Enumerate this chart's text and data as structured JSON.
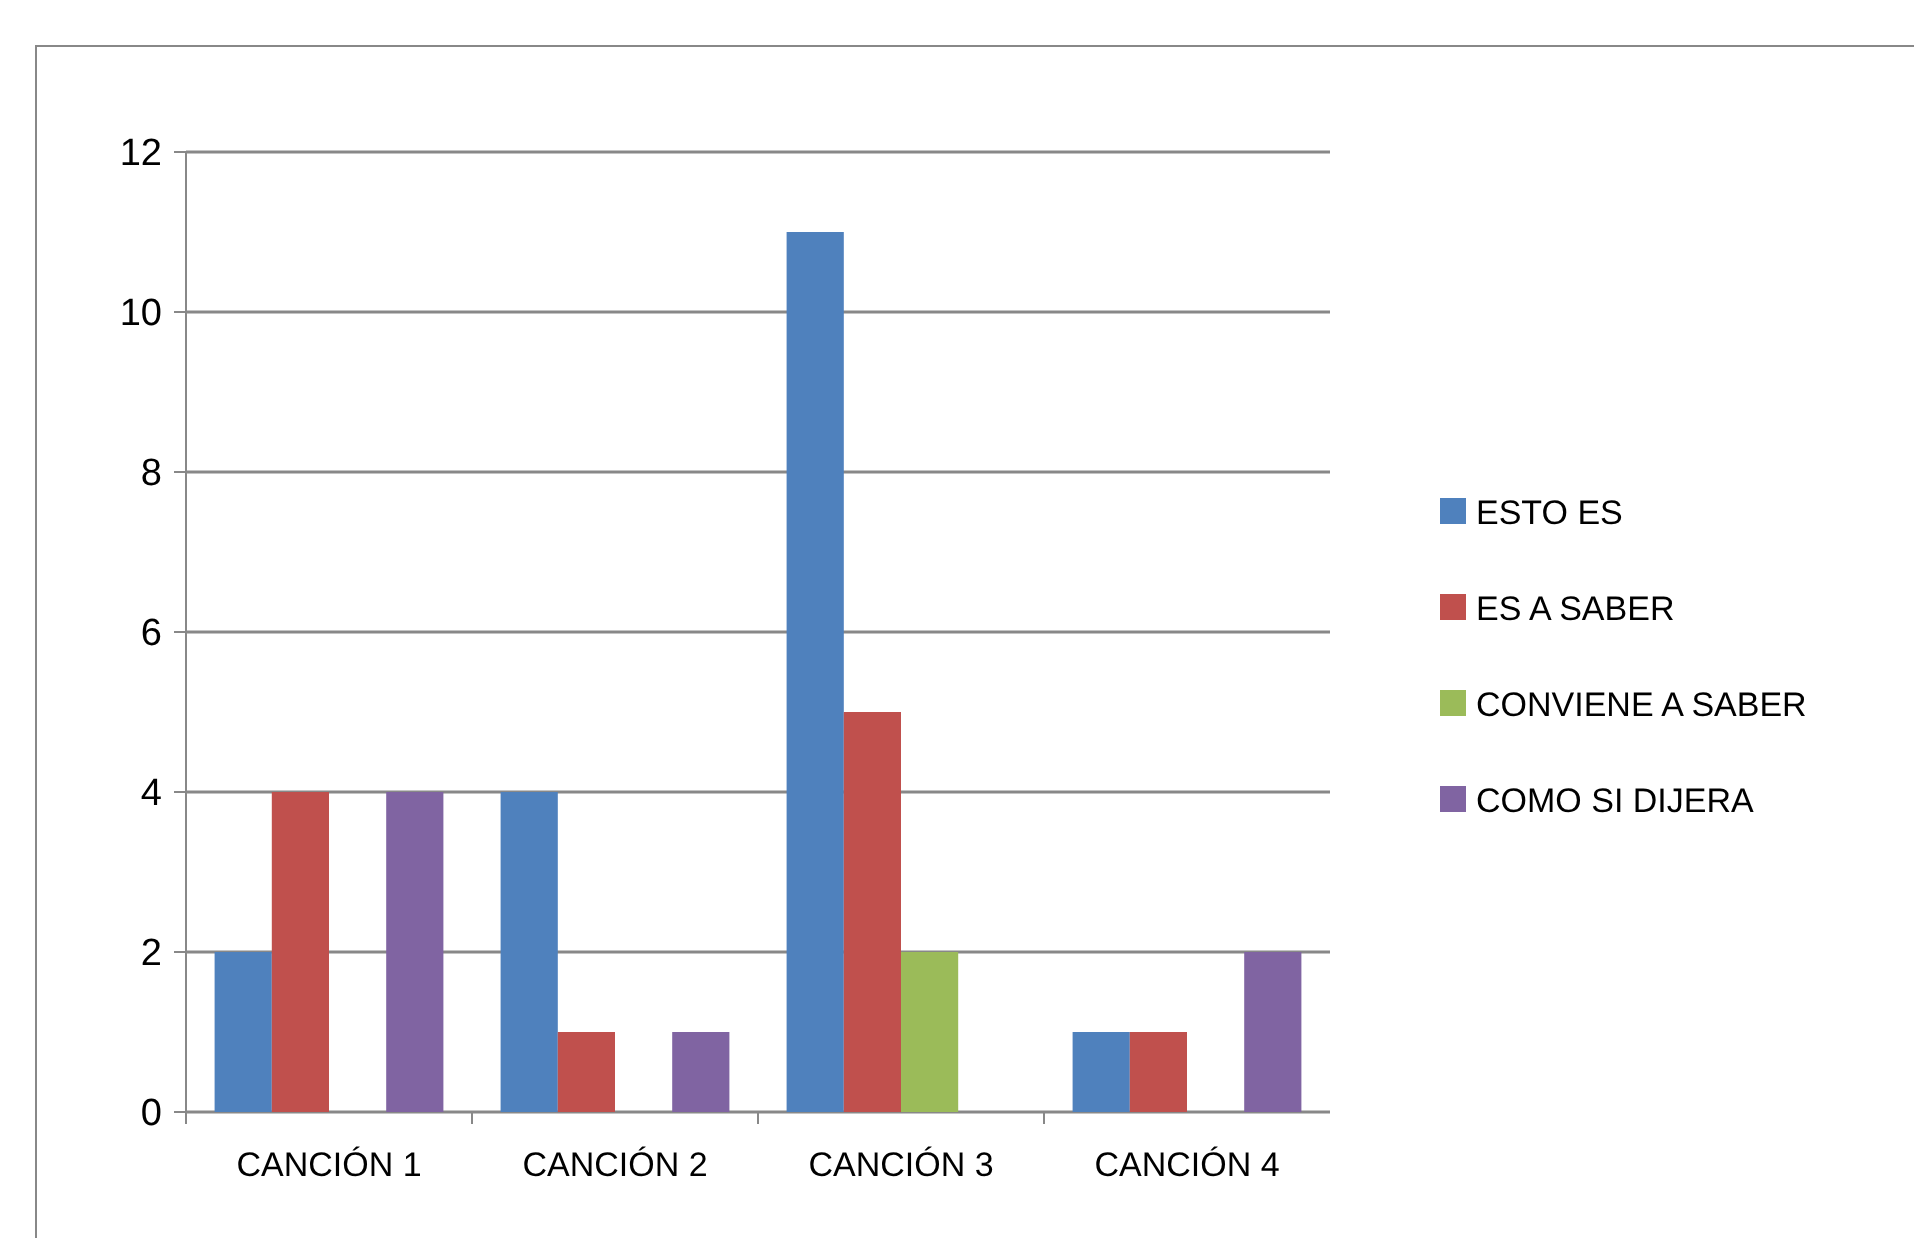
{
  "chart_data": {
    "type": "bar",
    "categories": [
      "CANCIÓN 1",
      "CANCIÓN 2",
      "CANCIÓN 3",
      "CANCIÓN 4"
    ],
    "series": [
      {
        "name": "ESTO ES",
        "color": "#4f81bd",
        "values": [
          2,
          4,
          11,
          1
        ]
      },
      {
        "name": "ES A SABER",
        "color": "#c0504d",
        "values": [
          4,
          1,
          5,
          1
        ]
      },
      {
        "name": "CONVIENE A SABER",
        "color": "#9bbb59",
        "values": [
          0,
          0,
          2,
          0
        ]
      },
      {
        "name": "COMO SI DIJERA",
        "color": "#8064a2",
        "values": [
          4,
          1,
          0,
          2
        ]
      }
    ],
    "ylim": [
      0,
      12
    ],
    "yticks": [
      0,
      2,
      4,
      6,
      8,
      10,
      12
    ],
    "grid": "y",
    "legend": "right"
  }
}
